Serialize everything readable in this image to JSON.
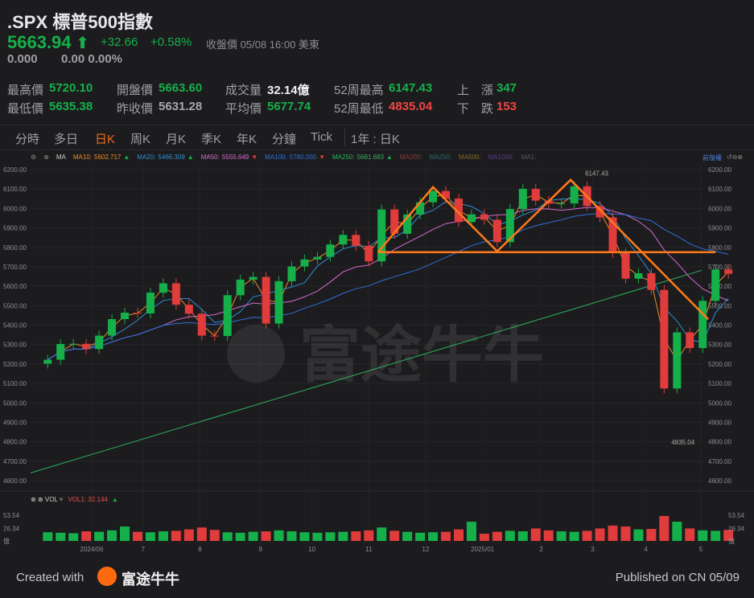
{
  "header": {
    "symbol": ".SPX",
    "name": "標普500指數",
    "price": "5663.94",
    "change": "+32.66",
    "change_pct": "+0.58%",
    "status": "收盤價",
    "datetime": "05/08 16:00 美東",
    "after_price": "0.000",
    "after_change": "0.00",
    "after_pct": "0.00%"
  },
  "stats": [
    {
      "label": "最高價",
      "value": "5720.10",
      "color": "g"
    },
    {
      "label": "最低價",
      "value": "5635.38",
      "color": "g"
    },
    {
      "label": "開盤價",
      "value": "5663.60",
      "color": "g"
    },
    {
      "label": "昨收價",
      "value": "5631.28",
      "color": "gr"
    },
    {
      "label": "成交量",
      "value": "32.14億",
      "color": "w"
    },
    {
      "label": "平均價",
      "value": "5677.74",
      "color": "g"
    },
    {
      "label": "52周最高",
      "value": "6147.43",
      "color": "g"
    },
    {
      "label": "52周最低",
      "value": "4835.04",
      "color": "r"
    },
    {
      "label": "上　漲",
      "value": "347",
      "color": "g"
    },
    {
      "label": "下　跌",
      "value": "153",
      "color": "r"
    }
  ],
  "tabs": [
    "分時",
    "多日",
    "日K",
    "周K",
    "月K",
    "季K",
    "年K",
    "分鐘",
    "Tick",
    "1年 : 日K"
  ],
  "active_tab": "日K",
  "ma_legend": {
    "label": "MA",
    "items": [
      {
        "name": "MA10:",
        "value": "5602.717",
        "trend": "▲",
        "color": "#f08a24"
      },
      {
        "name": "MA20:",
        "value": "5466.309",
        "trend": "▲",
        "color": "#2d8fd5"
      },
      {
        "name": "MA50:",
        "value": "5555.649",
        "trend": "▼",
        "color": "#d86ad0"
      },
      {
        "name": "MA100:",
        "value": "5780.000",
        "trend": "▼",
        "color": "#2f6fdc"
      },
      {
        "name": "MA250:",
        "value": "5681.683",
        "trend": "▲",
        "color": "#2fb061"
      },
      {
        "name": "MA200:",
        "value": "",
        "trend": "",
        "color": "#8a3a3a"
      },
      {
        "name": "MA250:",
        "value": "",
        "trend": "",
        "color": "#2a6a70"
      },
      {
        "name": "MA500:",
        "value": "",
        "trend": "",
        "color": "#8a6a2a"
      },
      {
        "name": "MA1000:",
        "value": "",
        "trend": "",
        "color": "#5a3a8a"
      },
      {
        "name": "MA1:",
        "value": "",
        "trend": "",
        "color": "#5a5a5a"
      }
    ],
    "right_label": "前復權"
  },
  "vol_legend": {
    "label": "VOL",
    "name": "VOL1:",
    "value": "32.144",
    "trend": "▲"
  },
  "watermark": "富途牛牛",
  "colors": {
    "up": "#16b04a",
    "down": "#e03c3c",
    "drawing": "#ff7a1a",
    "bg": "#1c1c1e"
  },
  "chart_data": {
    "type": "candlestick",
    "period": "weekly approximation of daily chart",
    "y_ticks": [
      6200,
      6100,
      6000,
      5900,
      5800,
      5700,
      5600,
      5500,
      5400,
      5300,
      5200,
      5100,
      5000,
      4900,
      4800,
      4700,
      4600
    ],
    "y_tick_labels": [
      "6200.00",
      "6100.00",
      "6000.00",
      "5900.00",
      "5800.00",
      "5700.00",
      "5600.00",
      "5500.00",
      "5400.00",
      "5300.00",
      "5200.00",
      "5100.00",
      "5000.00",
      "4900.00",
      "4800.00",
      "4700.00",
      "4600.00"
    ],
    "x_labels": [
      {
        "date": "2024-06-03",
        "label": "2024/06"
      },
      {
        "date": "2024-07-01",
        "label": "7"
      },
      {
        "date": "2024-08-01",
        "label": "8"
      },
      {
        "date": "2024-09-03",
        "label": "9"
      },
      {
        "date": "2024-10-01",
        "label": "10"
      },
      {
        "date": "2024-11-01",
        "label": "11"
      },
      {
        "date": "2024-12-02",
        "label": "12"
      },
      {
        "date": "2025-01-02",
        "label": "2025/01"
      },
      {
        "date": "2025-02-03",
        "label": "2"
      },
      {
        "date": "2025-03-03",
        "label": "3"
      },
      {
        "date": "2025-04-01",
        "label": "4"
      },
      {
        "date": "2025-05-01",
        "label": "5"
      }
    ],
    "start_date": "2024-05-10",
    "closes": [
      5222,
      5303,
      5304,
      5277,
      5346,
      5431,
      5464,
      5460,
      5567,
      5615,
      5505,
      5459,
      5346,
      5344,
      5554,
      5634,
      5648,
      5408,
      5626,
      5702,
      5738,
      5751,
      5815,
      5864,
      5808,
      5728,
      5995,
      5870,
      5969,
      6032,
      6090,
      6051,
      5930,
      5970,
      5942,
      5827,
      5997,
      6101,
      6040,
      6025,
      6026,
      6114,
      6013,
      5954,
      5770,
      5639,
      5667,
      5581,
      5074,
      5363,
      5282,
      5525,
      5686,
      5664
    ],
    "volumes": [
      18,
      17,
      16,
      20,
      19,
      22,
      30,
      19,
      18,
      20,
      21,
      24,
      28,
      23,
      18,
      17,
      19,
      20,
      22,
      20,
      18,
      17,
      18,
      19,
      20,
      22,
      28,
      21,
      19,
      17,
      18,
      19,
      24,
      40,
      15,
      19,
      21,
      20,
      26,
      22,
      20,
      19,
      21,
      26,
      32,
      30,
      24,
      25,
      52,
      40,
      26,
      22,
      21,
      23
    ],
    "ma250_range": [
      4640,
      5682
    ],
    "annotations": [
      {
        "text": "6147.43",
        "date": "2025-02-19",
        "price": 6147.43
      },
      {
        "text": "4835.04",
        "date": "2025-04-07",
        "price": 4835.04
      }
    ],
    "drawings": {
      "neckline": [
        [
          "2024-11-06",
          5775
        ],
        [
          "2025-05-09",
          5775
        ]
      ],
      "zigzag": [
        [
          "2024-11-06",
          5775
        ],
        [
          "2024-12-06",
          6110
        ],
        [
          "2025-01-10",
          5780
        ],
        [
          "2025-02-19",
          6147
        ],
        [
          "2025-05-05",
          5430
        ]
      ]
    },
    "vol_ticks": [
      {
        "v": 53.54,
        "label": "53.54"
      },
      {
        "v": 26.34,
        "label": "26.34"
      },
      {
        "v": 0,
        "label": "億"
      }
    ]
  },
  "footer": {
    "created_with": "Created with",
    "brand": "富途牛牛",
    "published": "Published on CN 05/09"
  }
}
